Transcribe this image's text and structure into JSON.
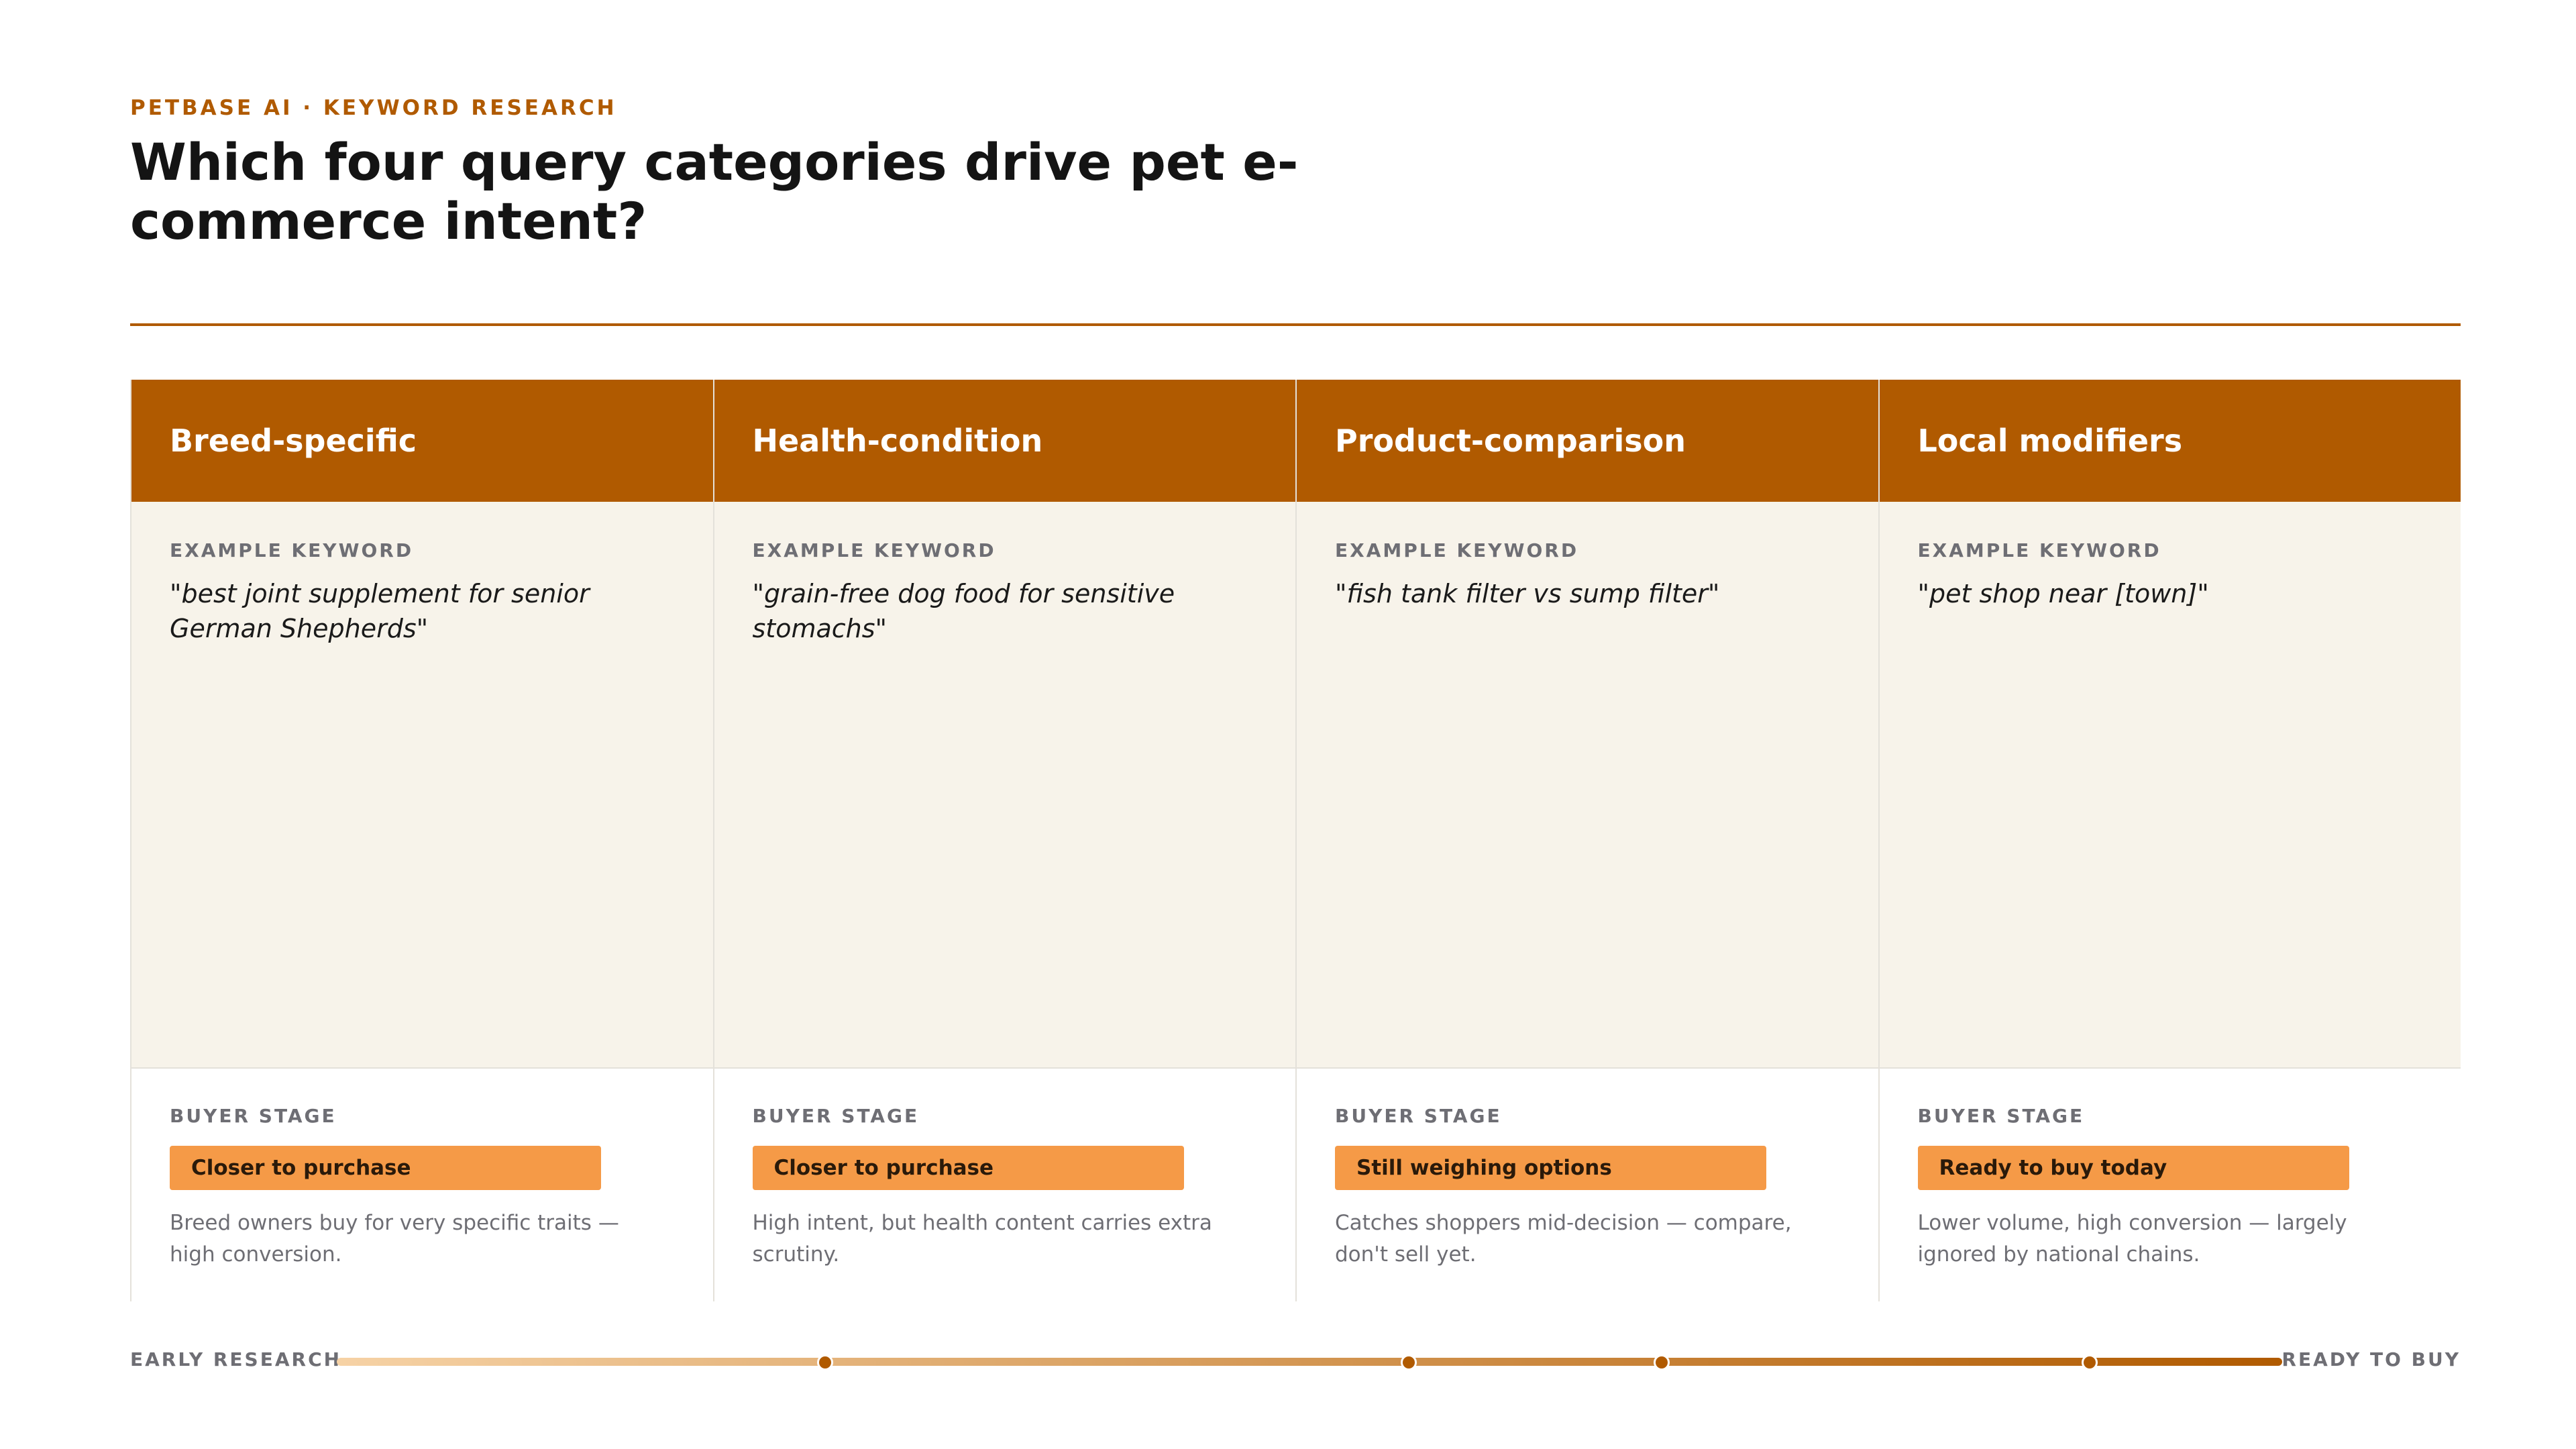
{
  "header": {
    "eyebrow": "PETBASE AI · KEYWORD RESEARCH",
    "title": "Which four query categories drive pet e-commerce intent?"
  },
  "columns": [
    {
      "name": "Breed-specific",
      "example_label": "EXAMPLE KEYWORD",
      "example": "\"best joint supplement for senior German Shepherds\"",
      "stage_label": "BUYER STAGE",
      "stage": "Closer to purchase",
      "note": "Breed owners buy for very specific traits — high conversion."
    },
    {
      "name": "Health-condition",
      "example_label": "EXAMPLE KEYWORD",
      "example": "\"grain-free dog food for sensitive stomachs\"",
      "stage_label": "BUYER STAGE",
      "stage": "Closer to purchase",
      "note": "High intent, but health content carries extra scrutiny."
    },
    {
      "name": "Product-comparison",
      "example_label": "EXAMPLE KEYWORD",
      "example": "\"fish tank filter vs sump filter\"",
      "stage_label": "BUYER STAGE",
      "stage": "Still weighing options",
      "note": "Catches shoppers mid-decision — compare, don't sell yet."
    },
    {
      "name": "Local modifiers",
      "example_label": "EXAMPLE KEYWORD",
      "example": "\"pet shop near [town]\"",
      "stage_label": "BUYER STAGE",
      "stage": "Ready to buy today",
      "note": "Lower volume, high conversion — largely ignored by national chains."
    }
  ],
  "scale": {
    "left_label": "EARLY RESEARCH",
    "right_label": "READY TO BUY",
    "positions": [
      0.25,
      0.55,
      0.68,
      0.9
    ]
  },
  "colors": {
    "accent": "#b05a00",
    "badge": "#f59a47",
    "panel": "#f7f3ea"
  }
}
